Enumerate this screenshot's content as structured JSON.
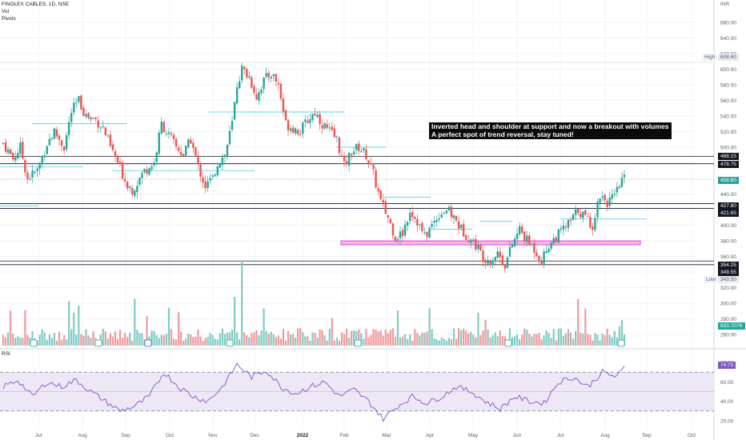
{
  "header": {
    "symbol_line": "FINOLEX CABLES, 1D, NSE",
    "vol_label": "Vol",
    "pivots_label": "Pivots"
  },
  "annotation": {
    "line1": "Inverted head and shoulder at support and now a breakout with volumes",
    "line2": "A perfect spot of trend reversal, stay tuned!"
  },
  "axis": {
    "currency": "INR",
    "high_label": "High",
    "high_value": "608.60",
    "low_label": "Low",
    "low_value": "343.50",
    "levels": [
      "488.15",
      "478.75",
      "427.80",
      "421.65",
      "354.25",
      "349.55"
    ],
    "last_price": "458.80",
    "volume_value": "833.707K",
    "rsi_label": "RSI",
    "rsi_value": "74.75"
  },
  "colors": {
    "up": "#26a69a",
    "down": "#ef5350",
    "rsi_line": "#7e57c2",
    "rsi_band": "#ede7f6",
    "zone": "#e040fb",
    "pivot": "#4dd0e1",
    "level_line": "#131722"
  },
  "chart_data": [
    {
      "type": "candlestick",
      "title": "FINOLEX CABLES, 1D, NSE",
      "ylim": [
        250,
        670
      ],
      "y_ticks": [
        260,
        280,
        300,
        320,
        340,
        360,
        380,
        400,
        420,
        440,
        460,
        480,
        500,
        520,
        540,
        560,
        580,
        600,
        620,
        640,
        660
      ],
      "x_ticks": [
        "Jul",
        "Aug",
        "Sep",
        "Oct",
        "Nov",
        "Dec",
        "2022",
        "Feb",
        "Mar",
        "Apr",
        "May",
        "Jun",
        "Jul",
        "Aug",
        "Sep",
        "Oct"
      ],
      "price_path": [
        [
          0,
          505
        ],
        [
          4,
          485
        ],
        [
          7,
          500
        ],
        [
          10,
          460
        ],
        [
          14,
          470
        ],
        [
          18,
          505
        ],
        [
          21,
          520
        ],
        [
          25,
          500
        ],
        [
          28,
          545
        ],
        [
          31,
          560
        ],
        [
          34,
          540
        ],
        [
          38,
          535
        ],
        [
          41,
          525
        ],
        [
          44,
          500
        ],
        [
          47,
          480
        ],
        [
          50,
          458
        ],
        [
          53,
          445
        ],
        [
          55,
          455
        ],
        [
          58,
          470
        ],
        [
          62,
          480
        ],
        [
          65,
          530
        ],
        [
          68,
          515
        ],
        [
          71,
          500
        ],
        [
          74,
          490
        ],
        [
          77,
          510
        ],
        [
          80,
          475
        ],
        [
          83,
          450
        ],
        [
          86,
          460
        ],
        [
          88,
          480
        ],
        [
          91,
          490
        ],
        [
          94,
          530
        ],
        [
          96,
          580
        ],
        [
          98,
          600
        ],
        [
          101,
          590
        ],
        [
          104,
          565
        ],
        [
          107,
          585
        ],
        [
          110,
          595
        ],
        [
          113,
          580
        ],
        [
          116,
          530
        ],
        [
          119,
          525
        ],
        [
          122,
          520
        ],
        [
          125,
          535
        ],
        [
          128,
          545
        ],
        [
          131,
          530
        ],
        [
          134,
          520
        ],
        [
          137,
          510
        ],
        [
          140,
          475
        ],
        [
          143,
          495
        ],
        [
          146,
          500
        ],
        [
          149,
          490
        ],
        [
          152,
          465
        ],
        [
          155,
          430
        ],
        [
          158,
          410
        ],
        [
          161,
          385
        ],
        [
          164,
          390
        ],
        [
          167,
          420
        ],
        [
          170,
          405
        ],
        [
          173,
          385
        ],
        [
          176,
          400
        ],
        [
          179,
          415
        ],
        [
          182,
          420
        ],
        [
          185,
          410
        ],
        [
          188,
          395
        ],
        [
          191,
          385
        ],
        [
          194,
          375
        ],
        [
          197,
          360
        ],
        [
          200,
          355
        ],
        [
          203,
          365
        ],
        [
          206,
          350
        ],
        [
          209,
          375
        ],
        [
          212,
          395
        ],
        [
          215,
          380
        ],
        [
          218,
          370
        ],
        [
          221,
          355
        ],
        [
          224,
          375
        ],
        [
          227,
          385
        ],
        [
          230,
          395
        ],
        [
          233,
          405
        ],
        [
          236,
          420
        ],
        [
          239,
          410
        ],
        [
          242,
          400
        ],
        [
          245,
          440
        ],
        [
          248,
          430
        ],
        [
          251,
          435
        ],
        [
          254,
          458.8
        ]
      ],
      "levels": [
        {
          "value": 488.15,
          "label": "488.15"
        },
        {
          "value": 478.75,
          "label": "478.75"
        },
        {
          "value": 427.8,
          "label": "427.80"
        },
        {
          "value": 421.65,
          "label": "421.65"
        },
        {
          "value": 354.25,
          "label": "354.25"
        },
        {
          "value": 349.55,
          "label": "349.55"
        }
      ],
      "support_zone": [
        375,
        380
      ],
      "high": 608.6,
      "low": 343.5,
      "last": 458.8
    },
    {
      "type": "bar",
      "title": "Vol",
      "last_value": "833.707K"
    },
    {
      "type": "line",
      "title": "RSI",
      "ylim": [
        15,
        85
      ],
      "y_ticks": [
        20,
        40,
        60,
        80
      ],
      "bands": [
        30,
        70
      ],
      "last": 74.75,
      "rsi_path": [
        [
          0,
          55
        ],
        [
          6,
          62
        ],
        [
          12,
          45
        ],
        [
          18,
          60
        ],
        [
          24,
          55
        ],
        [
          30,
          62
        ],
        [
          36,
          50
        ],
        [
          42,
          40
        ],
        [
          48,
          30
        ],
        [
          54,
          35
        ],
        [
          60,
          45
        ],
        [
          66,
          70
        ],
        [
          72,
          55
        ],
        [
          78,
          45
        ],
        [
          84,
          40
        ],
        [
          90,
          55
        ],
        [
          96,
          78
        ],
        [
          102,
          65
        ],
        [
          108,
          72
        ],
        [
          114,
          55
        ],
        [
          120,
          48
        ],
        [
          126,
          55
        ],
        [
          132,
          60
        ],
        [
          138,
          45
        ],
        [
          144,
          52
        ],
        [
          150,
          40
        ],
        [
          156,
          22
        ],
        [
          162,
          35
        ],
        [
          168,
          45
        ],
        [
          174,
          38
        ],
        [
          180,
          45
        ],
        [
          186,
          55
        ],
        [
          192,
          50
        ],
        [
          198,
          40
        ],
        [
          204,
          32
        ],
        [
          210,
          45
        ],
        [
          216,
          40
        ],
        [
          222,
          38
        ],
        [
          228,
          60
        ],
        [
          234,
          65
        ],
        [
          240,
          55
        ],
        [
          246,
          70
        ],
        [
          252,
          65
        ],
        [
          255,
          74.75
        ]
      ]
    }
  ]
}
